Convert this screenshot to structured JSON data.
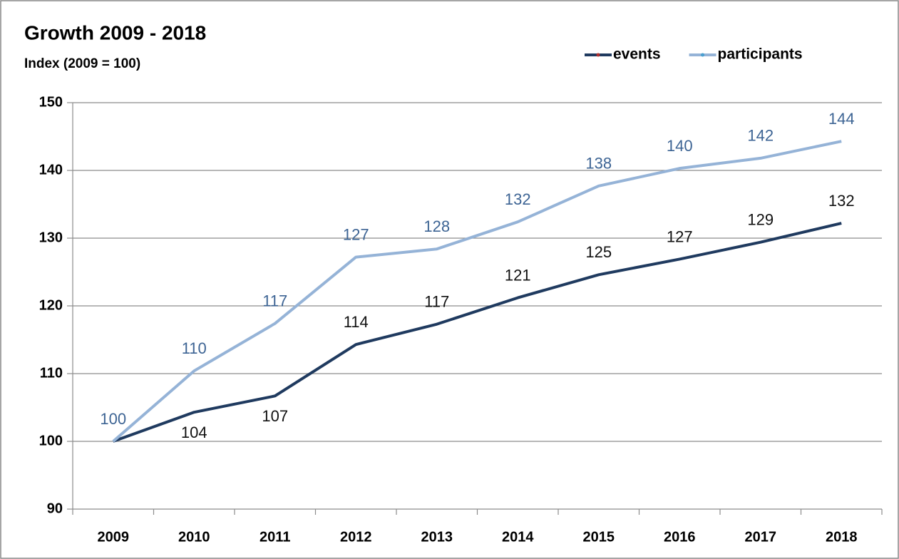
{
  "chart_data": {
    "type": "line",
    "title": "Growth 2009 - 2018",
    "subtitle": "Index (2009 = 100)",
    "categories": [
      "2009",
      "2010",
      "2011",
      "2012",
      "2013",
      "2014",
      "2015",
      "2016",
      "2017",
      "2018"
    ],
    "series": [
      {
        "name": "events",
        "color": "#1f3a5f",
        "label_color": "#111111",
        "values": [
          100,
          104.3,
          106.7,
          114.3,
          117.3,
          121.2,
          124.6,
          126.9,
          129.4,
          132.2
        ],
        "value_labels": [
          null,
          "104",
          "107",
          "114",
          "117",
          "121",
          "125",
          "127",
          "129",
          "132"
        ]
      },
      {
        "name": "participants",
        "color": "#95b3d7",
        "label_color": "#3d6494",
        "values": [
          100,
          110.4,
          117.4,
          127.2,
          128.4,
          132.4,
          137.7,
          140.3,
          141.8,
          144.3
        ],
        "value_labels": [
          "100",
          "110",
          "117",
          "127",
          "128",
          "132",
          "138",
          "140",
          "142",
          "144"
        ]
      }
    ],
    "ylim": [
      90,
      150
    ],
    "yticks": [
      90,
      100,
      110,
      120,
      130,
      140,
      150
    ],
    "grid": true,
    "legend": "top-right"
  }
}
